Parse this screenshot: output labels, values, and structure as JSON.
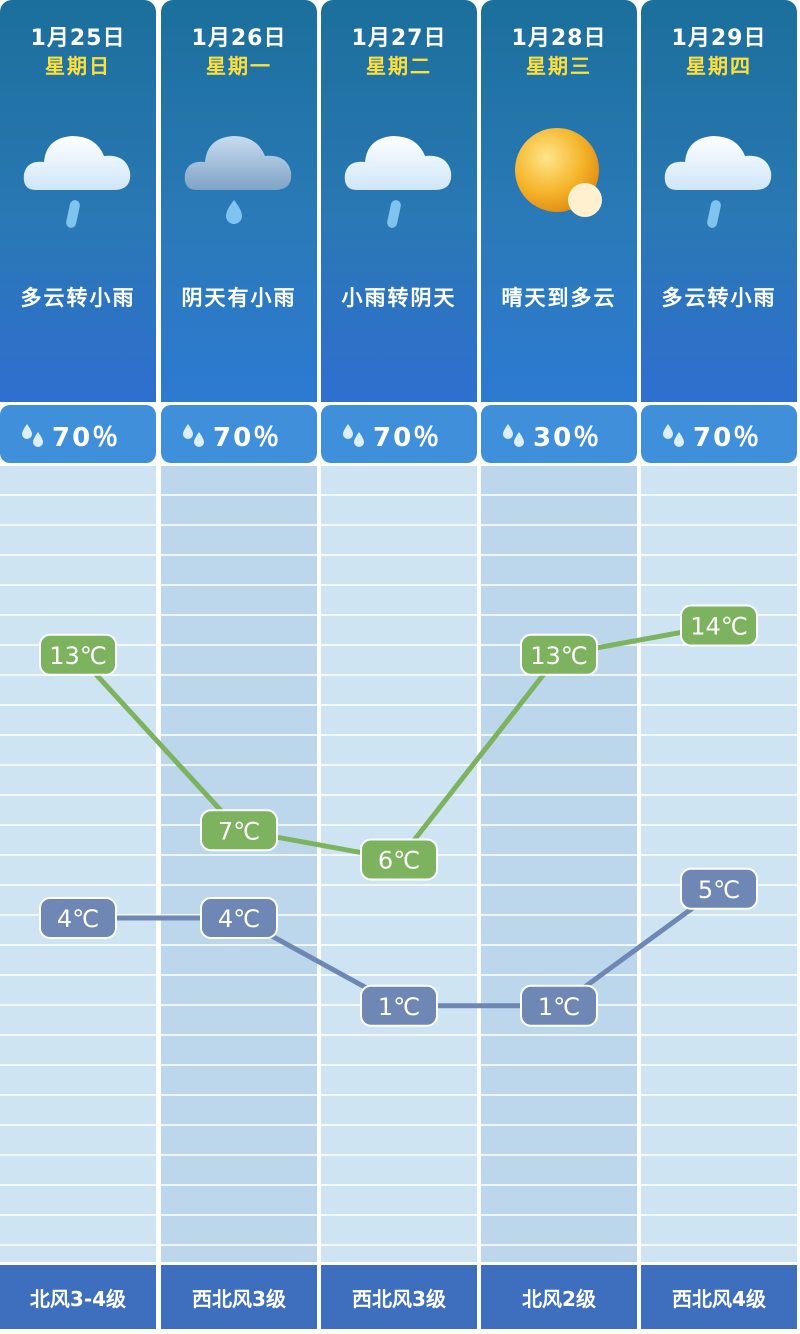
{
  "days": [
    {
      "date": "1月25日",
      "weekday": "星期日",
      "condition": "多云转小雨",
      "icon": "cloud-rain-icon",
      "precip": "70％",
      "wind": "北风3-4级"
    },
    {
      "date": "1月26日",
      "weekday": "星期一",
      "condition": "阴天有小雨",
      "icon": "overcast-rain-icon",
      "precip": "70％",
      "wind": "西北风3级"
    },
    {
      "date": "1月27日",
      "weekday": "星期二",
      "condition": "小雨转阴天",
      "icon": "cloud-rain-icon",
      "precip": "70％",
      "wind": "西北风3级"
    },
    {
      "date": "1月28日",
      "weekday": "星期三",
      "condition": "晴天到多云",
      "icon": "sun-icon",
      "precip": "30％",
      "wind": "北风2级"
    },
    {
      "date": "1月29日",
      "weekday": "星期四",
      "condition": "多云转小雨",
      "icon": "cloud-rain-icon",
      "precip": "70％",
      "wind": "西北风4级"
    }
  ],
  "chart_data": {
    "type": "line",
    "categories": [
      "1月25日",
      "1月26日",
      "1月27日",
      "1月28日",
      "1月29日"
    ],
    "series": [
      {
        "values": [
          13,
          7,
          6,
          13,
          14
        ],
        "labels": [
          "13℃",
          "7℃",
          "6℃",
          "13℃",
          "14℃"
        ],
        "color": "#7db35f"
      },
      {
        "values": [
          4,
          4,
          1,
          1,
          5
        ],
        "labels": [
          "4℃",
          "4℃",
          "1℃",
          "1℃",
          "5℃"
        ],
        "color": "#6f87b5"
      }
    ],
    "grid": true,
    "legend": "none"
  },
  "colors": {
    "header_top": "#1b6f9b",
    "header_bottom": "#2f6fd0",
    "weekday": "#ffe03a",
    "precip_bar": "#3f8fdb",
    "wind_bar": "#3d6fbe",
    "high_line": "#7db35f",
    "low_line": "#6f87b5"
  }
}
